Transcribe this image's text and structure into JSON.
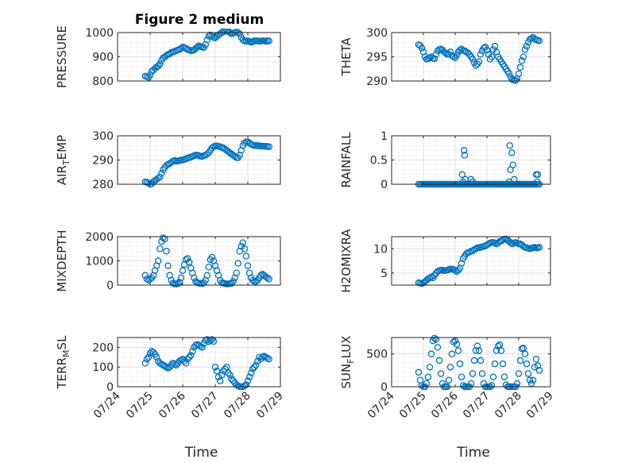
{
  "figure": {
    "title": "Figure 2 medium"
  },
  "series_color": "#0072bd",
  "x_axis": {
    "xlim": [
      0,
      5
    ],
    "tick_values": [
      0,
      1,
      2,
      3,
      4,
      5
    ],
    "tick_labels": [
      "07/24",
      "07/25",
      "07/26",
      "07/27",
      "07/28",
      "07/29"
    ],
    "label": "Time"
  },
  "chart_data": [
    {
      "type": "scatter",
      "ylabel": "PRESSURE",
      "ylim": [
        800,
        1000
      ],
      "yticks": [
        800,
        900,
        1000
      ],
      "grid": true,
      "x": [
        0.85,
        0.9,
        0.95,
        1.0,
        1.05,
        1.1,
        1.15,
        1.2,
        1.25,
        1.3,
        1.35,
        1.4,
        1.45,
        1.5,
        1.55,
        1.6,
        1.65,
        1.7,
        1.75,
        1.8,
        1.85,
        1.9,
        1.95,
        2.0,
        2.05,
        2.1,
        2.15,
        2.2,
        2.25,
        2.3,
        2.35,
        2.4,
        2.45,
        2.5,
        2.55,
        2.6,
        2.65,
        2.7,
        2.75,
        2.8,
        2.85,
        2.9,
        2.95,
        3.0,
        3.05,
        3.1,
        3.15,
        3.2,
        3.25,
        3.3,
        3.35,
        3.4,
        3.45,
        3.5,
        3.55,
        3.6,
        3.65,
        3.7,
        3.75,
        3.8,
        3.85,
        3.9,
        3.95,
        4.0,
        4.05,
        4.1,
        4.15,
        4.2,
        4.25,
        4.3,
        4.35,
        4.4,
        4.45,
        4.5,
        4.55,
        4.6,
        4.65
      ],
      "y": [
        820,
        818,
        815,
        825,
        840,
        845,
        852,
        858,
        862,
        870,
        885,
        895,
        900,
        905,
        910,
        912,
        918,
        920,
        922,
        925,
        928,
        930,
        935,
        940,
        938,
        935,
        930,
        928,
        925,
        926,
        928,
        935,
        940,
        945,
        942,
        940,
        938,
        950,
        970,
        985,
        990,
        985,
        980,
        978,
        985,
        990,
        995,
        1000,
        1005,
        1005,
        1006,
        1005,
        1000,
        995,
        998,
        1000,
        1002,
        1000,
        995,
        980,
        970,
        965,
        964,
        965,
        963,
        960,
        962,
        966,
        966,
        965,
        964,
        965,
        966,
        965,
        964,
        966,
        965
      ]
    },
    {
      "type": "scatter",
      "ylabel": "THETA",
      "ylim": [
        290,
        300
      ],
      "yticks": [
        290,
        295,
        300
      ],
      "grid": true,
      "x": [
        0.85,
        0.9,
        0.95,
        1.0,
        1.05,
        1.1,
        1.15,
        1.2,
        1.25,
        1.3,
        1.35,
        1.4,
        1.45,
        1.5,
        1.55,
        1.6,
        1.65,
        1.7,
        1.75,
        1.8,
        1.85,
        1.9,
        1.95,
        2.0,
        2.05,
        2.1,
        2.15,
        2.2,
        2.25,
        2.3,
        2.35,
        2.4,
        2.45,
        2.5,
        2.55,
        2.6,
        2.65,
        2.7,
        2.75,
        2.8,
        2.85,
        2.9,
        2.95,
        3.0,
        3.05,
        3.1,
        3.15,
        3.2,
        3.25,
        3.3,
        3.35,
        3.4,
        3.45,
        3.5,
        3.55,
        3.6,
        3.65,
        3.7,
        3.75,
        3.8,
        3.85,
        3.9,
        3.95,
        4.0,
        4.05,
        4.1,
        4.15,
        4.2,
        4.25,
        4.3,
        4.35,
        4.4,
        4.45,
        4.5,
        4.55,
        4.6,
        4.65
      ],
      "y": [
        297.5,
        297.3,
        296.8,
        296.0,
        295.0,
        294.5,
        294.6,
        294.8,
        295.0,
        294.7,
        294.6,
        295.5,
        296.2,
        296.5,
        296.6,
        296.4,
        296.0,
        295.8,
        295.5,
        295.6,
        296.0,
        295.2,
        295.0,
        294.8,
        295.3,
        296.0,
        296.4,
        296.6,
        296.3,
        296.2,
        296.0,
        295.8,
        295.5,
        295.0,
        294.5,
        293.8,
        293.2,
        293.5,
        294.0,
        295.5,
        296.2,
        296.8,
        297.0,
        296.4,
        295.5,
        294.5,
        295.0,
        296.5,
        297.2,
        296.0,
        295.0,
        294.5,
        294.0,
        293.5,
        293.0,
        292.5,
        292.0,
        291.5,
        290.8,
        290.3,
        290.2,
        290.1,
        290.5,
        291.5,
        292.8,
        294.2,
        295.0,
        296.5,
        297.2,
        298.0,
        298.6,
        298.8,
        299.0,
        298.7,
        298.5,
        298.4,
        298.3
      ]
    },
    {
      "type": "scatter",
      "ylabel": "AIR_TEMP",
      "ylim": [
        280,
        300
      ],
      "yticks": [
        280,
        290,
        300
      ],
      "grid": true,
      "x": [
        0.85,
        0.9,
        0.95,
        1.0,
        1.05,
        1.1,
        1.15,
        1.2,
        1.25,
        1.3,
        1.35,
        1.4,
        1.45,
        1.5,
        1.55,
        1.6,
        1.65,
        1.7,
        1.75,
        1.8,
        1.85,
        1.9,
        1.95,
        2.0,
        2.05,
        2.1,
        2.15,
        2.2,
        2.25,
        2.3,
        2.35,
        2.4,
        2.45,
        2.5,
        2.55,
        2.6,
        2.65,
        2.7,
        2.75,
        2.8,
        2.85,
        2.9,
        2.95,
        3.0,
        3.05,
        3.1,
        3.15,
        3.2,
        3.25,
        3.3,
        3.35,
        3.4,
        3.45,
        3.5,
        3.55,
        3.6,
        3.65,
        3.7,
        3.75,
        3.8,
        3.85,
        3.9,
        3.95,
        4.0,
        4.05,
        4.1,
        4.15,
        4.2,
        4.25,
        4.3,
        4.35,
        4.4,
        4.45,
        4.5,
        4.55,
        4.6,
        4.65
      ],
      "y": [
        281.0,
        280.8,
        280.5,
        280.0,
        280.2,
        281.0,
        281.5,
        282.0,
        282.5,
        283.0,
        284.5,
        286.0,
        287.0,
        287.8,
        288.2,
        288.5,
        289.0,
        289.5,
        289.8,
        289.5,
        289.6,
        289.8,
        290.0,
        290.0,
        290.2,
        290.5,
        290.8,
        291.0,
        291.2,
        291.5,
        291.8,
        292.0,
        292.0,
        291.8,
        291.6,
        291.5,
        291.8,
        292.0,
        292.5,
        293.0,
        294.0,
        295.0,
        295.5,
        295.8,
        295.8,
        295.6,
        295.5,
        295.2,
        295.0,
        294.5,
        294.0,
        293.5,
        293.0,
        292.5,
        292.0,
        291.5,
        291.0,
        291.0,
        292.0,
        294.0,
        296.0,
        297.0,
        297.5,
        297.5,
        297.0,
        296.5,
        296.2,
        296.0,
        296.0,
        296.0,
        295.8,
        295.8,
        295.7,
        295.7,
        295.6,
        295.6,
        295.5
      ]
    },
    {
      "type": "scatter",
      "ylabel": "RAINFALL",
      "ylim": [
        0,
        1
      ],
      "yticks": [
        0,
        0.5,
        1
      ],
      "ytick_labels": [
        "0",
        "0.5",
        "1"
      ],
      "grid": true,
      "x": [
        0.85,
        0.9,
        0.95,
        1.0,
        1.05,
        1.1,
        1.15,
        1.2,
        1.25,
        1.3,
        1.35,
        1.4,
        1.45,
        1.5,
        1.55,
        1.6,
        1.65,
        1.7,
        1.75,
        1.8,
        1.85,
        1.9,
        1.95,
        2.0,
        2.05,
        2.1,
        2.15,
        2.2,
        2.25,
        2.3,
        2.35,
        2.4,
        2.45,
        2.5,
        2.55,
        2.6,
        2.65,
        2.7,
        2.75,
        2.8,
        2.85,
        2.9,
        2.95,
        3.0,
        3.05,
        3.1,
        3.15,
        3.2,
        3.25,
        3.3,
        3.35,
        3.4,
        3.45,
        3.5,
        3.55,
        3.6,
        3.65,
        3.7,
        3.75,
        3.8,
        3.85,
        3.9,
        3.95,
        4.0,
        4.05,
        4.1,
        4.15,
        4.2,
        4.25,
        4.3,
        4.35,
        4.4,
        4.45,
        4.5,
        4.55,
        4.6,
        4.65,
        2.28,
        2.22,
        2.25,
        2.3,
        2.32,
        2.5,
        2.55,
        3.72,
        3.78,
        3.82,
        3.74,
        3.86,
        3.7,
        4.55,
        4.6,
        4.58
      ],
      "y": [
        0,
        0,
        0,
        0,
        0,
        0,
        0,
        0,
        0,
        0,
        0,
        0,
        0,
        0,
        0,
        0,
        0,
        0,
        0,
        0,
        0,
        0,
        0,
        0,
        0,
        0,
        0,
        0,
        0,
        0,
        0,
        0,
        0,
        0,
        0,
        0,
        0,
        0,
        0,
        0,
        0,
        0,
        0,
        0,
        0,
        0,
        0,
        0,
        0,
        0,
        0,
        0,
        0,
        0,
        0,
        0,
        0,
        0,
        0,
        0,
        0,
        0,
        0,
        0,
        0,
        0,
        0,
        0,
        0,
        0,
        0,
        0,
        0,
        0,
        0,
        0,
        0,
        0.7,
        0.2,
        0.05,
        0.6,
        0.1,
        0.1,
        0.05,
        0.8,
        0.65,
        0.4,
        0.3,
        0.1,
        0.05,
        0.2,
        0.2,
        0.05
      ]
    },
    {
      "type": "scatter",
      "ylabel": "MIXDEPTH",
      "ylim": [
        0,
        2000
      ],
      "yticks": [
        0,
        1000,
        2000
      ],
      "grid": true,
      "x": [
        0.85,
        0.9,
        0.95,
        1.0,
        1.05,
        1.1,
        1.15,
        1.2,
        1.25,
        1.3,
        1.35,
        1.4,
        1.45,
        1.5,
        1.55,
        1.6,
        1.65,
        1.7,
        1.75,
        1.8,
        1.85,
        1.9,
        1.95,
        2.0,
        2.05,
        2.1,
        2.15,
        2.2,
        2.25,
        2.3,
        2.35,
        2.4,
        2.45,
        2.5,
        2.55,
        2.6,
        2.65,
        2.7,
        2.75,
        2.8,
        2.85,
        2.9,
        2.95,
        3.0,
        3.05,
        3.1,
        3.15,
        3.2,
        3.25,
        3.3,
        3.35,
        3.4,
        3.45,
        3.5,
        3.55,
        3.6,
        3.65,
        3.7,
        3.75,
        3.8,
        3.85,
        3.9,
        3.95,
        4.0,
        4.05,
        4.1,
        4.15,
        4.2,
        4.25,
        4.3,
        4.35,
        4.4,
        4.45,
        4.5,
        4.55,
        4.6,
        4.65
      ],
      "y": [
        400,
        250,
        200,
        250,
        300,
        400,
        600,
        800,
        1000,
        1500,
        1800,
        1950,
        1900,
        1400,
        800,
        400,
        200,
        80,
        50,
        40,
        60,
        120,
        300,
        600,
        850,
        1050,
        1100,
        950,
        700,
        500,
        300,
        150,
        100,
        80,
        70,
        60,
        100,
        200,
        400,
        750,
        1050,
        1150,
        1000,
        800,
        600,
        400,
        200,
        100,
        80,
        60,
        50,
        50,
        60,
        70,
        150,
        300,
        500,
        900,
        1400,
        1600,
        1750,
        1500,
        1200,
        800,
        500,
        300,
        200,
        150,
        150,
        200,
        300,
        400,
        450,
        400,
        350,
        300,
        250
      ]
    },
    {
      "type": "scatter",
      "ylabel": "H2OMIXRA",
      "ylim": [
        2.5,
        12.5
      ],
      "yticks": [
        5,
        10
      ],
      "grid": true,
      "x": [
        0.85,
        0.9,
        0.95,
        1.0,
        1.05,
        1.1,
        1.15,
        1.2,
        1.25,
        1.3,
        1.35,
        1.4,
        1.45,
        1.5,
        1.55,
        1.6,
        1.65,
        1.7,
        1.75,
        1.8,
        1.85,
        1.9,
        1.95,
        2.0,
        2.05,
        2.1,
        2.15,
        2.2,
        2.25,
        2.3,
        2.35,
        2.4,
        2.45,
        2.5,
        2.55,
        2.6,
        2.65,
        2.7,
        2.75,
        2.8,
        2.85,
        2.9,
        2.95,
        3.0,
        3.05,
        3.1,
        3.15,
        3.2,
        3.25,
        3.3,
        3.35,
        3.4,
        3.45,
        3.5,
        3.55,
        3.6,
        3.65,
        3.7,
        3.75,
        3.8,
        3.85,
        3.9,
        3.95,
        4.0,
        4.05,
        4.1,
        4.15,
        4.2,
        4.25,
        4.3,
        4.35,
        4.4,
        4.45,
        4.5,
        4.55,
        4.6,
        4.65
      ],
      "y": [
        3.0,
        2.9,
        2.8,
        3.0,
        3.2,
        3.5,
        3.8,
        4.0,
        4.2,
        4.0,
        4.5,
        5.0,
        5.3,
        5.5,
        5.6,
        5.6,
        5.5,
        5.5,
        5.6,
        5.7,
        5.8,
        5.8,
        5.7,
        5.5,
        5.3,
        5.6,
        6.0,
        7.0,
        8.0,
        8.5,
        9.0,
        9.2,
        9.3,
        9.5,
        9.6,
        9.8,
        10.0,
        10.2,
        10.2,
        10.3,
        10.4,
        10.5,
        10.6,
        10.8,
        11.0,
        11.2,
        11.3,
        11.3,
        11.2,
        11.0,
        11.2,
        11.5,
        11.6,
        11.8,
        12.0,
        12.0,
        11.8,
        11.5,
        11.2,
        11.0,
        11.2,
        11.3,
        11.2,
        11.0,
        11.0,
        10.8,
        10.5,
        10.3,
        10.2,
        10.1,
        10.0,
        10.1,
        10.2,
        10.3,
        10.2,
        10.2,
        10.3
      ]
    },
    {
      "type": "scatter",
      "ylabel": "TERR_MSL",
      "ylim": [
        0,
        250
      ],
      "yticks": [
        0,
        100,
        200
      ],
      "grid": true,
      "x": [
        0.85,
        0.9,
        0.95,
        1.0,
        1.05,
        1.1,
        1.15,
        1.2,
        1.25,
        1.3,
        1.35,
        1.4,
        1.45,
        1.5,
        1.55,
        1.6,
        1.65,
        1.7,
        1.75,
        1.8,
        1.85,
        1.9,
        1.95,
        2.0,
        2.05,
        2.1,
        2.15,
        2.2,
        2.25,
        2.3,
        2.35,
        2.4,
        2.45,
        2.5,
        2.55,
        2.6,
        2.65,
        2.7,
        2.75,
        2.8,
        2.85,
        2.9,
        2.95,
        3.0,
        3.05,
        3.1,
        3.15,
        3.2,
        3.25,
        3.3,
        3.35,
        3.4,
        3.45,
        3.5,
        3.55,
        3.6,
        3.65,
        3.7,
        3.75,
        3.8,
        3.85,
        3.9,
        3.95,
        4.0,
        4.05,
        4.1,
        4.15,
        4.2,
        4.25,
        4.3,
        4.35,
        4.4,
        4.45,
        4.5,
        4.55,
        4.6,
        4.65
      ],
      "y": [
        120,
        140,
        150,
        170,
        180,
        175,
        165,
        150,
        130,
        120,
        115,
        110,
        105,
        100,
        95,
        100,
        110,
        120,
        115,
        110,
        120,
        130,
        135,
        140,
        130,
        120,
        140,
        150,
        160,
        180,
        200,
        210,
        215,
        210,
        205,
        200,
        220,
        235,
        240,
        230,
        235,
        240,
        230,
        100,
        80,
        50,
        30,
        60,
        80,
        90,
        100,
        70,
        60,
        40,
        30,
        20,
        10,
        5,
        0,
        0,
        0,
        5,
        10,
        30,
        50,
        70,
        90,
        100,
        110,
        130,
        150,
        140,
        150,
        155,
        150,
        145,
        140
      ]
    },
    {
      "type": "scatter",
      "ylabel": "SUN_FLUX",
      "ylim": [
        0,
        750
      ],
      "yticks": [
        0,
        500
      ],
      "grid": true,
      "x": [
        0.85,
        0.9,
        0.95,
        1.0,
        1.05,
        1.1,
        1.15,
        1.2,
        1.25,
        1.3,
        1.35,
        1.4,
        1.45,
        1.5,
        1.55,
        1.6,
        1.65,
        1.7,
        1.75,
        1.8,
        1.85,
        1.9,
        1.95,
        2.0,
        2.05,
        2.1,
        2.15,
        2.2,
        2.25,
        2.3,
        2.35,
        2.4,
        2.45,
        2.5,
        2.55,
        2.6,
        2.65,
        2.7,
        2.75,
        2.8,
        2.85,
        2.9,
        2.95,
        3.0,
        3.05,
        3.1,
        3.15,
        3.2,
        3.25,
        3.3,
        3.35,
        3.4,
        3.45,
        3.5,
        3.55,
        3.6,
        3.65,
        3.7,
        3.75,
        3.8,
        3.85,
        3.9,
        3.95,
        4.0,
        4.05,
        4.1,
        4.15,
        4.2,
        4.25,
        4.3,
        4.35,
        4.4,
        4.45,
        4.5,
        4.55,
        4.6,
        4.65
      ],
      "y": [
        220,
        100,
        20,
        0,
        0,
        50,
        150,
        300,
        500,
        700,
        740,
        720,
        600,
        400,
        200,
        50,
        0,
        0,
        0,
        100,
        300,
        500,
        680,
        700,
        650,
        550,
        350,
        150,
        20,
        0,
        0,
        0,
        0,
        50,
        200,
        400,
        550,
        620,
        550,
        400,
        200,
        50,
        0,
        0,
        0,
        0,
        20,
        150,
        350,
        550,
        620,
        640,
        550,
        350,
        150,
        30,
        0,
        0,
        0,
        0,
        0,
        0,
        50,
        200,
        400,
        580,
        590,
        500,
        350,
        200,
        100,
        50,
        100,
        300,
        420,
        320,
        250
      ]
    }
  ]
}
